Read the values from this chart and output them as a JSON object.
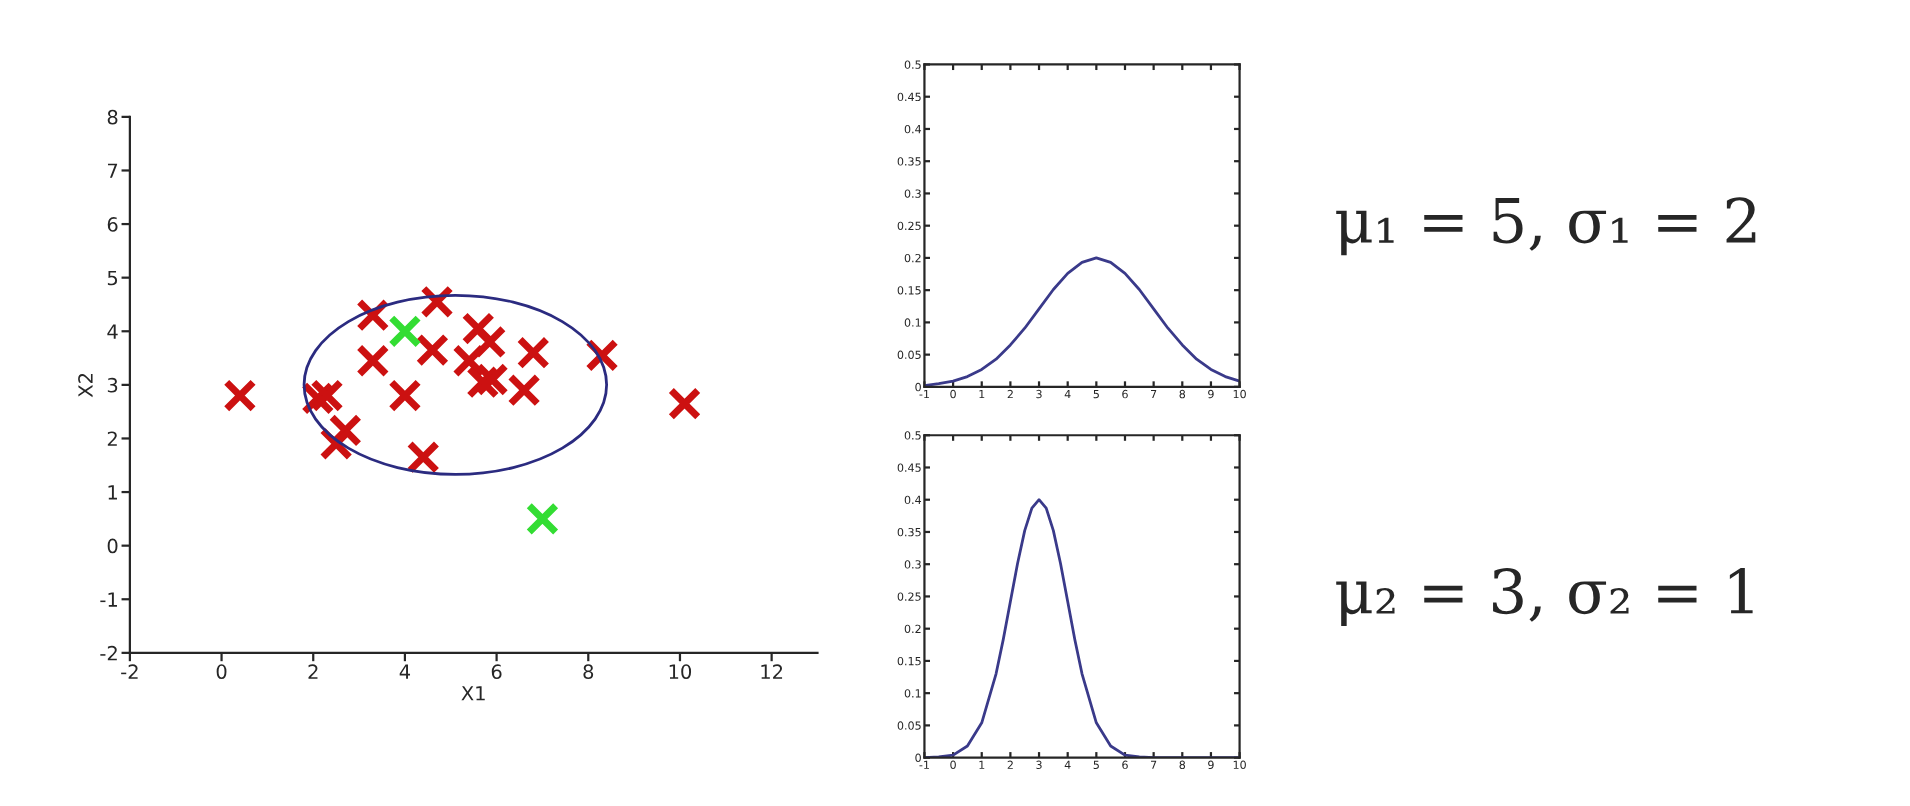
{
  "chart_data": [
    {
      "type": "scatter",
      "xlabel": "X1",
      "ylabel": "X2",
      "xlim": [
        -2,
        13
      ],
      "ylim": [
        -2,
        8
      ],
      "xticks": [
        -2,
        0,
        2,
        4,
        6,
        8,
        10,
        12
      ],
      "yticks": [
        -2,
        -1,
        0,
        1,
        2,
        3,
        4,
        5,
        6,
        7,
        8
      ],
      "grid": false,
      "marker": "cross",
      "series": [
        {
          "color": "#cc1111",
          "x": [
            0.4,
            2.1,
            2.3,
            2.7,
            2.5,
            3.3,
            3.3,
            4.0,
            4.4,
            4.7,
            4.6,
            5.4,
            5.6,
            5.85,
            5.7,
            5.9,
            6.6,
            6.8,
            8.3,
            10.1
          ],
          "values": [
            2.8,
            2.75,
            2.8,
            2.15,
            1.9,
            4.3,
            3.45,
            2.8,
            1.65,
            4.55,
            3.65,
            3.45,
            4.05,
            3.8,
            3.05,
            3.1,
            2.9,
            3.6,
            3.55,
            2.65
          ]
        },
        {
          "color": "#33dd33",
          "x": [
            4.0,
            7.0
          ],
          "values": [
            4.0,
            0.5
          ]
        }
      ]
    },
    {
      "type": "line",
      "xlim": [
        -1,
        10
      ],
      "ylim": [
        0,
        0.5
      ],
      "xticks": [
        -1,
        0,
        1,
        2,
        3,
        4,
        5,
        6,
        7,
        8,
        9,
        10
      ],
      "yticks": [
        0,
        0.05,
        0.1,
        0.15,
        0.2,
        0.25,
        0.3,
        0.35,
        0.4,
        0.45,
        0.5
      ],
      "grid": false,
      "annotations": [
        "μ₁ = 5, σ₁ = 2"
      ],
      "series": [
        {
          "color": "#3a3a8a",
          "x": [
            -1,
            -0.5,
            0,
            0.5,
            1,
            1.5,
            2,
            2.5,
            3,
            3.5,
            4,
            4.5,
            5,
            5.5,
            6,
            6.5,
            7,
            7.5,
            8,
            8.5,
            9,
            9.5,
            10
          ],
          "values": [
            0.002,
            0.005,
            0.009,
            0.016,
            0.027,
            0.043,
            0.065,
            0.091,
            0.121,
            0.151,
            0.176,
            0.193,
            0.2,
            0.193,
            0.176,
            0.151,
            0.121,
            0.091,
            0.065,
            0.043,
            0.027,
            0.016,
            0.009
          ]
        }
      ]
    },
    {
      "type": "line",
      "xlim": [
        -1,
        10
      ],
      "ylim": [
        0,
        0.5
      ],
      "xticks": [
        -1,
        0,
        1,
        2,
        3,
        4,
        5,
        6,
        7,
        8,
        9,
        10
      ],
      "yticks": [
        0,
        0.05,
        0.1,
        0.15,
        0.2,
        0.25,
        0.3,
        0.35,
        0.4,
        0.45,
        0.5
      ],
      "grid": false,
      "annotations": [
        "μ₂ = 3, σ₂ = 1"
      ],
      "series": [
        {
          "color": "#3a3a8a",
          "x": [
            -1,
            -0.5,
            0,
            0.5,
            1,
            1.5,
            1.75,
            2,
            2.25,
            2.5,
            2.75,
            3,
            3.25,
            3.5,
            3.75,
            4,
            4.25,
            4.5,
            5,
            5.5,
            6,
            6.5,
            7,
            7.5,
            8,
            9,
            10
          ],
          "values": [
            0.0,
            0.001,
            0.004,
            0.018,
            0.054,
            0.13,
            0.183,
            0.242,
            0.301,
            0.352,
            0.387,
            0.4,
            0.387,
            0.352,
            0.301,
            0.242,
            0.183,
            0.13,
            0.054,
            0.018,
            0.004,
            0.001,
            0.0,
            0.0,
            0.0,
            0.0,
            0.0
          ]
        }
      ]
    }
  ]
}
